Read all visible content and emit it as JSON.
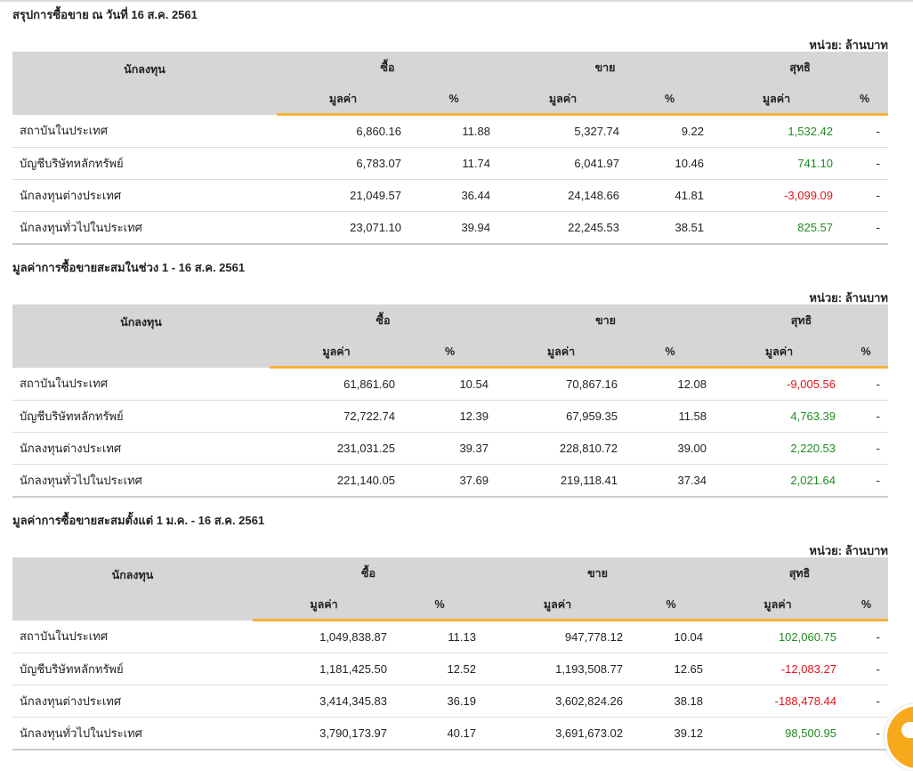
{
  "unit": "หน่วย: ล้านบาท",
  "headers": {
    "investor": "นักลงทุน",
    "buy": "ซื้อ",
    "sell": "ขาย",
    "net": "สุทธิ",
    "value": "มูลค่า",
    "pct": "%"
  },
  "sections": [
    {
      "title": "สรุปการซื้อขาย ณ วันที่ 16 ส.ค. 2561",
      "rows": [
        [
          "สถาบันในประเทศ",
          "6,860.16",
          "11.88",
          "5,327.74",
          "9.22",
          "1,532.42",
          "-",
          "pos"
        ],
        [
          "บัญชีบริษัทหลักทรัพย์",
          "6,783.07",
          "11.74",
          "6,041.97",
          "10.46",
          "741.10",
          "-",
          "pos"
        ],
        [
          "นักลงทุนต่างประเทศ",
          "21,049.57",
          "36.44",
          "24,148.66",
          "41.81",
          "-3,099.09",
          "-",
          "neg"
        ],
        [
          "นักลงทุนทั่วไปในประเทศ",
          "23,071.10",
          "39.94",
          "22,245.53",
          "38.51",
          "825.57",
          "-",
          "pos"
        ]
      ]
    },
    {
      "title": "มูลค่าการซื้อขายสะสมในช่วง 1 - 16 ส.ค. 2561",
      "rows": [
        [
          "สถาบันในประเทศ",
          "61,861.60",
          "10.54",
          "70,867.16",
          "12.08",
          "-9,005.56",
          "-",
          "neg"
        ],
        [
          "บัญชีบริษัทหลักทรัพย์",
          "72,722.74",
          "12.39",
          "67,959.35",
          "11.58",
          "4,763.39",
          "-",
          "pos"
        ],
        [
          "นักลงทุนต่างประเทศ",
          "231,031.25",
          "39.37",
          "228,810.72",
          "39.00",
          "2,220.53",
          "-",
          "pos"
        ],
        [
          "นักลงทุนทั่วไปในประเทศ",
          "221,140.05",
          "37.69",
          "219,118.41",
          "37.34",
          "2,021.64",
          "-",
          "pos"
        ]
      ]
    },
    {
      "title": "มูลค่าการซื้อขายสะสมตั้งแต่ 1 ม.ค. - 16 ส.ค. 2561",
      "rows": [
        [
          "สถาบันในประเทศ",
          "1,049,838.87",
          "11.13",
          "947,778.12",
          "10.04",
          "102,060.75",
          "-",
          "pos"
        ],
        [
          "บัญชีบริษัทหลักทรัพย์",
          "1,181,425.50",
          "12.52",
          "1,193,508.77",
          "12.65",
          "-12,083.27",
          "-",
          "neg"
        ],
        [
          "นักลงทุนต่างประเทศ",
          "3,414,345.83",
          "36.19",
          "3,602,824.26",
          "38.18",
          "-188,478.44",
          "-",
          "neg"
        ],
        [
          "นักลงทุนทั่วไปในประเทศ",
          "3,790,173.97",
          "40.17",
          "3,691,673.02",
          "39.12",
          "98,500.95",
          "-",
          "pos"
        ]
      ]
    }
  ]
}
